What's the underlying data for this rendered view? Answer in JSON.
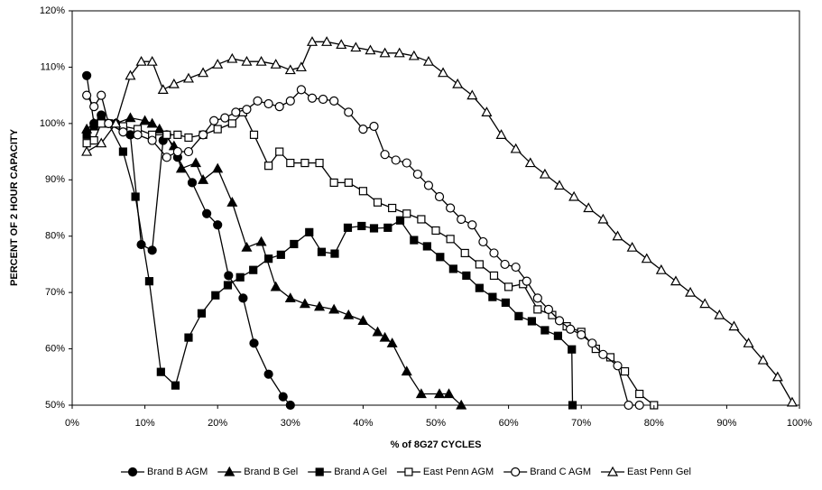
{
  "chart_data": {
    "type": "line",
    "xlabel": "% of 8G27 CYCLES",
    "ylabel": "PERCENT OF 2 HOUR CAPACITY",
    "xlim": [
      0,
      100
    ],
    "ylim": [
      50,
      120
    ],
    "xticks": [
      {
        "value": 0,
        "label": "0%"
      },
      {
        "value": 10,
        "label": "10%"
      },
      {
        "value": 20,
        "label": "20%"
      },
      {
        "value": 30,
        "label": "30%"
      },
      {
        "value": 40,
        "label": "40%"
      },
      {
        "value": 50,
        "label": "50%"
      },
      {
        "value": 60,
        "label": "60%"
      },
      {
        "value": 70,
        "label": "70%"
      },
      {
        "value": 80,
        "label": "80%"
      },
      {
        "value": 90,
        "label": "90%"
      },
      {
        "value": 100,
        "label": "100%"
      }
    ],
    "yticks": [
      {
        "value": 50,
        "label": "50%"
      },
      {
        "value": 60,
        "label": "60%"
      },
      {
        "value": 70,
        "label": "70%"
      },
      {
        "value": 80,
        "label": "80%"
      },
      {
        "value": 90,
        "label": "90%"
      },
      {
        "value": 100,
        "label": "100%"
      },
      {
        "value": 110,
        "label": "110%"
      },
      {
        "value": 120,
        "label": "120%"
      }
    ],
    "grid": false,
    "legend": "bottom",
    "series": [
      {
        "name": "Brand B AGM",
        "color": "#000000",
        "marker": "circle",
        "filled": true,
        "x": [
          2,
          3,
          4,
          5,
          6,
          7,
          8,
          9.5,
          11,
          12.5,
          13,
          14.5,
          16.5,
          18.5,
          20,
          21.5,
          23.5,
          25,
          27,
          29,
          30
        ],
        "values": [
          108.5,
          100,
          101.5,
          100,
          100,
          99,
          98,
          78.5,
          77.5,
          97,
          98,
          94,
          89.5,
          84,
          82,
          73,
          69,
          61,
          55.5,
          51.5,
          50
        ]
      },
      {
        "name": "Brand B Gel",
        "color": "#000000",
        "marker": "triangle",
        "filled": true,
        "x": [
          2,
          3,
          4,
          6,
          8,
          10,
          11,
          12,
          14,
          15,
          17,
          18,
          20,
          22,
          24,
          26,
          28,
          30,
          32,
          34,
          36,
          38,
          40,
          42,
          43,
          44,
          46,
          48,
          50.5,
          51.8,
          53.5
        ],
        "values": [
          99,
          100,
          100,
          100,
          101,
          100.5,
          100,
          99,
          96,
          92,
          93,
          90,
          92,
          86,
          78,
          79,
          71,
          69,
          68,
          67.5,
          67,
          66,
          65,
          63,
          62,
          61,
          56,
          52,
          52,
          52,
          50
        ]
      },
      {
        "name": "Brand A Gel",
        "color": "#000000",
        "marker": "square",
        "filled": true,
        "x": [
          2,
          3,
          4,
          5,
          7,
          8.7,
          10.6,
          12.2,
          14.2,
          16,
          17.8,
          19.7,
          21.4,
          23.1,
          24.9,
          27,
          28.7,
          30.5,
          32.6,
          34.3,
          36.1,
          37.9,
          39.8,
          41.5,
          43.4,
          45.1,
          47,
          48.8,
          50.6,
          52.4,
          54.2,
          56,
          57.8,
          59.6,
          61.4,
          63.2,
          65,
          66.8,
          68.7,
          68.8
        ],
        "values": [
          98,
          99.5,
          101,
          100,
          95,
          87,
          72,
          55.9,
          53.5,
          62,
          66.3,
          69.5,
          71.3,
          72.7,
          74,
          76,
          76.7,
          78.6,
          80.7,
          77.2,
          76.9,
          81.5,
          81.8,
          81.4,
          81.5,
          82.8,
          79.3,
          78.2,
          76.3,
          74.2,
          73,
          70.8,
          69.2,
          68.2,
          65.8,
          64.9,
          63.3,
          62.3,
          59.9,
          50
        ]
      },
      {
        "name": "East Penn AGM",
        "color": "#000000",
        "marker": "square",
        "filled": false,
        "x": [
          2,
          3,
          4,
          5,
          7,
          9,
          11,
          13,
          14.5,
          16,
          18,
          20,
          22,
          23.5,
          25,
          27,
          28.5,
          30,
          32,
          34,
          36,
          38,
          40,
          42,
          44,
          46,
          48,
          50,
          52,
          54,
          56,
          58,
          60,
          62,
          64,
          66,
          68,
          70,
          72,
          74,
          76,
          78,
          80
        ],
        "values": [
          96.5,
          97,
          100,
          100,
          99.5,
          99,
          98,
          98,
          98,
          97.5,
          98,
          99,
          100,
          102,
          98,
          92.5,
          95,
          93,
          93,
          93,
          89.5,
          89.5,
          88,
          86,
          85,
          84,
          83,
          81,
          79.5,
          77,
          75,
          73,
          71,
          71.5,
          67,
          66,
          64,
          63,
          60,
          58.5,
          56,
          52,
          50
        ]
      },
      {
        "name": "Brand C AGM",
        "color": "#000000",
        "marker": "circle",
        "filled": false,
        "x": [
          2,
          3,
          4,
          5,
          7,
          9,
          11,
          13,
          14.5,
          16,
          18,
          19.5,
          21,
          22.5,
          24,
          25.5,
          27,
          28.5,
          30,
          31.5,
          33,
          34.5,
          36,
          38,
          40,
          41.5,
          43,
          44.5,
          46,
          47.5,
          49,
          50.5,
          52,
          53.5,
          55,
          56.5,
          58,
          59.5,
          61,
          62.5,
          64,
          65.5,
          67,
          68.5,
          70,
          71.5,
          73,
          75,
          76.5,
          78
        ],
        "values": [
          105,
          103,
          105,
          100,
          98.5,
          98,
          97,
          94,
          95,
          95,
          98,
          100.5,
          101,
          102,
          102.5,
          104,
          103.5,
          103,
          104,
          106,
          104.5,
          104.3,
          104,
          102,
          99,
          99.5,
          94.5,
          93.5,
          93,
          91,
          89,
          87,
          85,
          83,
          82,
          79,
          77,
          75,
          74.5,
          72,
          69,
          67,
          65,
          63.5,
          62.5,
          61,
          59,
          57,
          50,
          50
        ]
      },
      {
        "name": "East Penn Gel",
        "color": "#000000",
        "marker": "triangle",
        "filled": false,
        "x": [
          2,
          4,
          6,
          8,
          9.5,
          11,
          12.5,
          14,
          16,
          18,
          20,
          22,
          24,
          26,
          28,
          30,
          31.5,
          33,
          35,
          37,
          39,
          41,
          43,
          45,
          47,
          49,
          51,
          53,
          55,
          57,
          59,
          61,
          63,
          65,
          67,
          69,
          71,
          73,
          75,
          77,
          79,
          81,
          83,
          85,
          87,
          89,
          91,
          93,
          95,
          97,
          99
        ],
        "values": [
          95,
          96.5,
          100,
          108.5,
          111,
          111,
          106,
          107,
          108,
          109,
          110.5,
          111.5,
          111,
          111,
          110.5,
          109.5,
          110,
          114.5,
          114.5,
          114,
          113.5,
          113,
          112.5,
          112.5,
          112,
          111,
          109,
          107,
          105,
          102,
          98,
          95.5,
          93,
          91,
          89,
          87,
          85,
          83,
          80,
          78,
          76,
          74,
          72,
          70,
          68,
          66,
          64,
          61,
          58,
          55,
          50.5
        ]
      }
    ]
  }
}
